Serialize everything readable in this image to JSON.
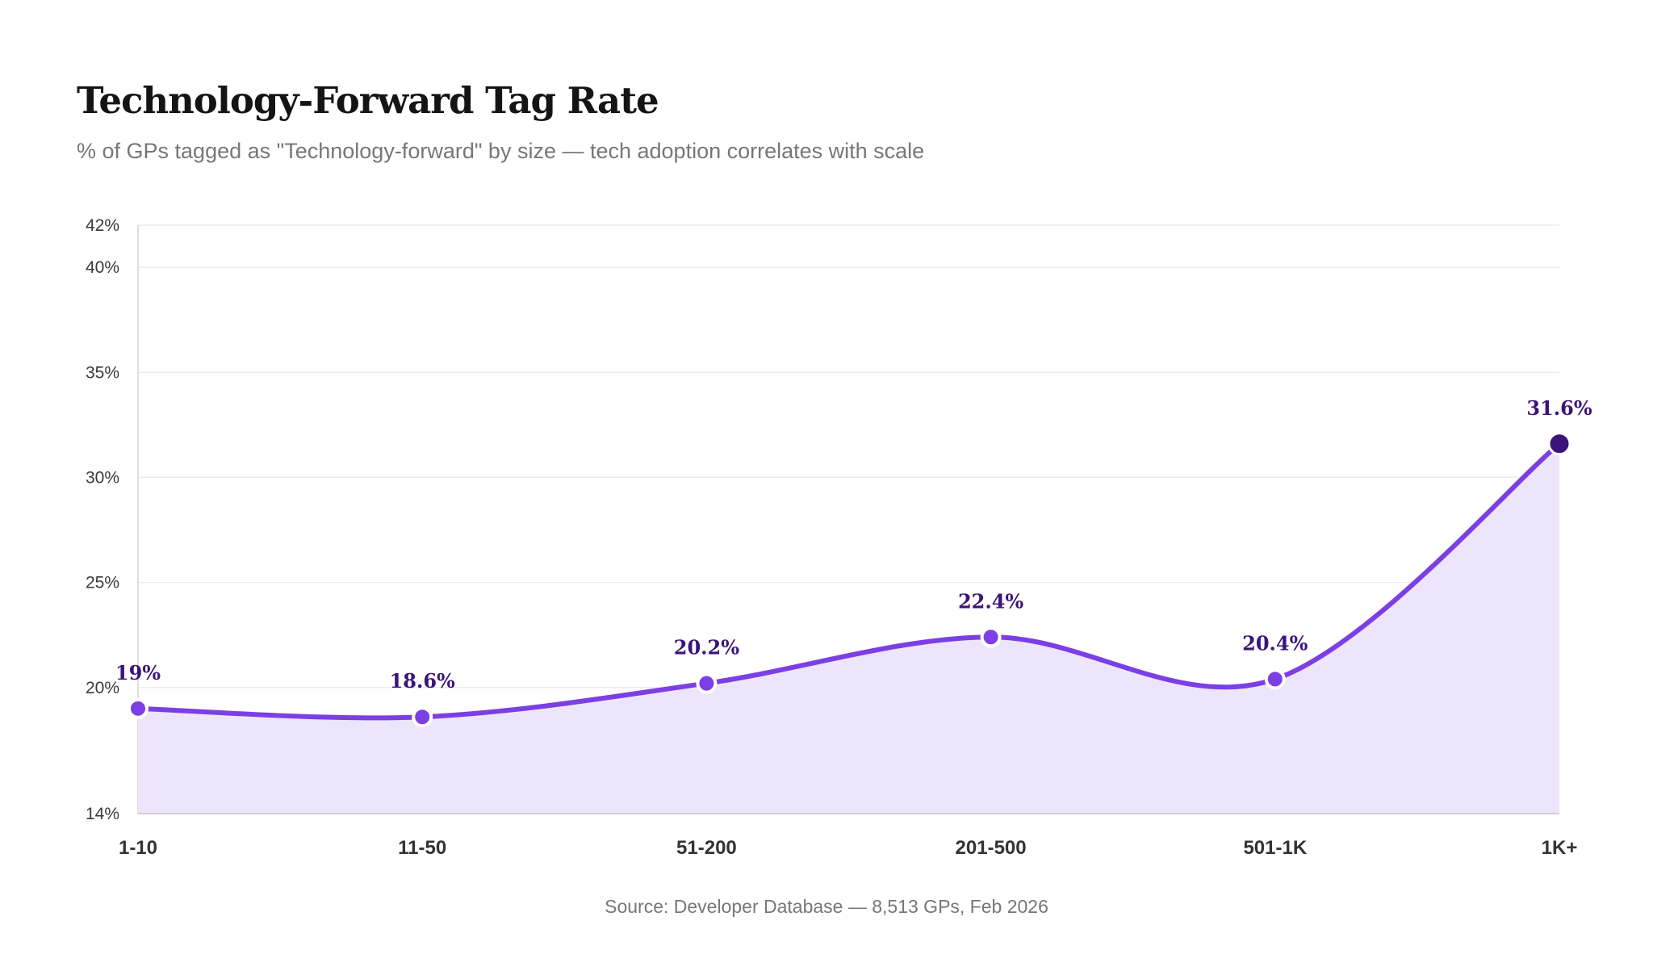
{
  "title": "Technology-Forward Tag Rate",
  "subtitle": "% of GPs tagged as \"Technology-forward\" by size — tech adoption correlates with scale",
  "source": "Source: Developer Database — 8,513 GPs, Feb 2026",
  "colors": {
    "line": "#7b3fe4",
    "area": "#ede5fb",
    "highlight_point": "#3b1478",
    "label": "#3b1478"
  },
  "chart_data": {
    "type": "area",
    "title": "Technology-Forward Tag Rate",
    "xlabel": "",
    "ylabel": "",
    "categories": [
      "1-10",
      "11-50",
      "51-200",
      "201-500",
      "501-1K",
      "1K+"
    ],
    "values": [
      19,
      18.6,
      20.2,
      22.4,
      20.4,
      31.6
    ],
    "data_labels": [
      "19%",
      "18.6%",
      "20.2%",
      "22.4%",
      "20.4%",
      "31.6%"
    ],
    "ylim": [
      14,
      42
    ],
    "yticks": [
      14,
      20,
      25,
      30,
      35,
      40,
      42
    ],
    "ytick_labels": [
      "14%",
      "20%",
      "25%",
      "30%",
      "35%",
      "40%",
      "42%"
    ],
    "highlight_index": 5,
    "grid": true,
    "legend": "none"
  }
}
